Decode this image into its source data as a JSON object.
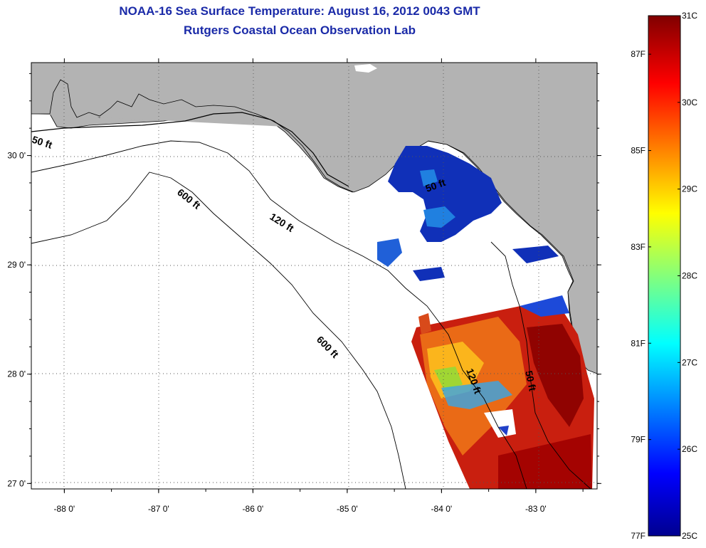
{
  "title": "NOAA-16 Sea Surface Temperature:  August 16, 2012 0043 GMT",
  "subtitle": "Rutgers Coastal Ocean Observation Lab",
  "map": {
    "lon_range": [
      -88.35,
      -82.35
    ],
    "lat_range": [
      26.95,
      30.85
    ],
    "lon_ticks": [
      {
        "value": -88,
        "label": "-88 0'"
      },
      {
        "value": -87,
        "label": "-87 0'"
      },
      {
        "value": -86,
        "label": "-86 0'"
      },
      {
        "value": -85,
        "label": "-85 0'"
      },
      {
        "value": -84,
        "label": "-84 0'"
      },
      {
        "value": -83,
        "label": "-83 0'"
      }
    ],
    "lat_ticks": [
      {
        "value": 30,
        "label": "30 0'"
      },
      {
        "value": 29,
        "label": "29 0'"
      },
      {
        "value": 28,
        "label": "28 0'"
      },
      {
        "value": 27,
        "label": "27 0'"
      }
    ],
    "contour_labels": [
      "50 ft",
      "600 ft",
      "120 ft",
      "600 ft",
      "120 ft",
      "50 ft",
      "50 ft"
    ],
    "colors": {
      "land": "#b3b3b3",
      "ocean": "#ffffff",
      "grid": "#333333"
    }
  },
  "colorbar": {
    "celsius_labels": [
      {
        "value": 31,
        "label": "31C"
      },
      {
        "value": 30,
        "label": "30C"
      },
      {
        "value": 29,
        "label": "29C"
      },
      {
        "value": 28,
        "label": "28C"
      },
      {
        "value": 27,
        "label": "27C"
      },
      {
        "value": 26,
        "label": "26C"
      },
      {
        "value": 25,
        "label": "25C"
      }
    ],
    "fahrenheit_labels": [
      {
        "value": 87,
        "label": "87F"
      },
      {
        "value": 85,
        "label": "85F"
      },
      {
        "value": 83,
        "label": "83F"
      },
      {
        "value": 81,
        "label": "81F"
      },
      {
        "value": 79,
        "label": "79F"
      },
      {
        "value": 77,
        "label": "77F"
      }
    ],
    "range_c": [
      25,
      31
    ]
  }
}
